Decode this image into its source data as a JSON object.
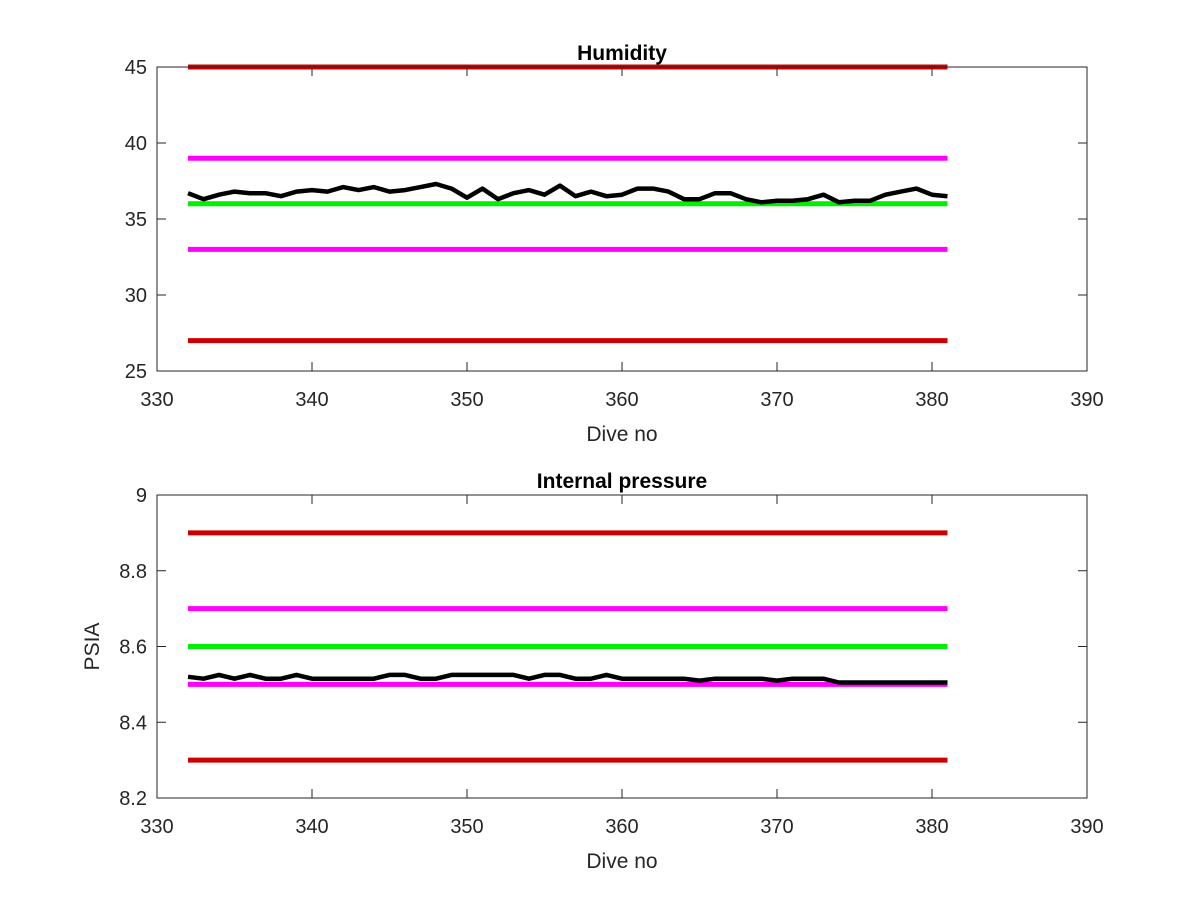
{
  "colors": {
    "limit_outer": "#cc0000",
    "limit_inner": "#ff00ff",
    "target": "#00ee00",
    "measured": "#000000",
    "axis": "#262626"
  },
  "chart_data": [
    {
      "type": "line",
      "title": "Humidity",
      "xlabel": "Dive no",
      "ylabel": "",
      "xlim": [
        330,
        390
      ],
      "ylim": [
        25,
        45
      ],
      "xticks": [
        330,
        340,
        350,
        360,
        370,
        380,
        390
      ],
      "yticks": [
        25,
        30,
        35,
        40,
        45
      ],
      "grid": false,
      "series": [
        {
          "role": "limit_outer",
          "x": [
            332,
            381
          ],
          "y": [
            45,
            45
          ]
        },
        {
          "role": "limit_inner",
          "x": [
            332,
            381
          ],
          "y": [
            39,
            39
          ]
        },
        {
          "role": "target",
          "x": [
            332,
            381
          ],
          "y": [
            36,
            36
          ]
        },
        {
          "role": "limit_inner",
          "x": [
            332,
            381
          ],
          "y": [
            33,
            33
          ]
        },
        {
          "role": "limit_outer",
          "x": [
            332,
            381
          ],
          "y": [
            27,
            27
          ]
        },
        {
          "role": "measured",
          "x": [
            332,
            333,
            334,
            335,
            336,
            337,
            338,
            339,
            340,
            341,
            342,
            343,
            344,
            345,
            346,
            347,
            348,
            349,
            350,
            351,
            352,
            353,
            354,
            355,
            356,
            357,
            358,
            359,
            360,
            361,
            362,
            363,
            364,
            365,
            366,
            367,
            368,
            369,
            370,
            371,
            372,
            373,
            374,
            375,
            376,
            377,
            378,
            379,
            380,
            381
          ],
          "y": [
            36.7,
            36.3,
            36.6,
            36.8,
            36.7,
            36.7,
            36.5,
            36.8,
            36.9,
            36.8,
            37.1,
            36.9,
            37.1,
            36.8,
            36.9,
            37.1,
            37.3,
            37.0,
            36.4,
            37.0,
            36.3,
            36.7,
            36.9,
            36.6,
            37.2,
            36.5,
            36.8,
            36.5,
            36.6,
            37.0,
            37.0,
            36.8,
            36.3,
            36.3,
            36.7,
            36.7,
            36.3,
            36.1,
            36.2,
            36.2,
            36.3,
            36.6,
            36.1,
            36.2,
            36.2,
            36.6,
            36.8,
            37.0,
            36.6,
            36.5
          ]
        }
      ]
    },
    {
      "type": "line",
      "title": "Internal pressure",
      "xlabel": "Dive no",
      "ylabel": "PSIA",
      "xlim": [
        330,
        390
      ],
      "ylim": [
        8.2,
        9
      ],
      "xticks": [
        330,
        340,
        350,
        360,
        370,
        380,
        390
      ],
      "yticks": [
        8.2,
        8.4,
        8.6,
        8.8,
        9
      ],
      "grid": false,
      "series": [
        {
          "role": "limit_outer",
          "x": [
            332,
            381
          ],
          "y": [
            8.9,
            8.9
          ]
        },
        {
          "role": "limit_inner",
          "x": [
            332,
            381
          ],
          "y": [
            8.7,
            8.7
          ]
        },
        {
          "role": "target",
          "x": [
            332,
            381
          ],
          "y": [
            8.6,
            8.6
          ]
        },
        {
          "role": "limit_inner",
          "x": [
            332,
            381
          ],
          "y": [
            8.5,
            8.5
          ]
        },
        {
          "role": "limit_outer",
          "x": [
            332,
            381
          ],
          "y": [
            8.3,
            8.3
          ]
        },
        {
          "role": "measured",
          "x": [
            332,
            333,
            334,
            335,
            336,
            337,
            338,
            339,
            340,
            341,
            342,
            343,
            344,
            345,
            346,
            347,
            348,
            349,
            350,
            351,
            352,
            353,
            354,
            355,
            356,
            357,
            358,
            359,
            360,
            361,
            362,
            363,
            364,
            365,
            366,
            367,
            368,
            369,
            370,
            371,
            372,
            373,
            374,
            375,
            376,
            377,
            378,
            379,
            380,
            381
          ],
          "y": [
            8.52,
            8.515,
            8.525,
            8.515,
            8.525,
            8.515,
            8.515,
            8.525,
            8.515,
            8.515,
            8.515,
            8.515,
            8.515,
            8.525,
            8.525,
            8.515,
            8.515,
            8.525,
            8.525,
            8.525,
            8.525,
            8.525,
            8.515,
            8.525,
            8.525,
            8.515,
            8.515,
            8.525,
            8.515,
            8.515,
            8.515,
            8.515,
            8.515,
            8.51,
            8.515,
            8.515,
            8.515,
            8.515,
            8.51,
            8.515,
            8.515,
            8.515,
            8.505,
            8.505,
            8.505,
            8.505,
            8.505,
            8.505,
            8.505,
            8.505
          ]
        }
      ]
    }
  ]
}
